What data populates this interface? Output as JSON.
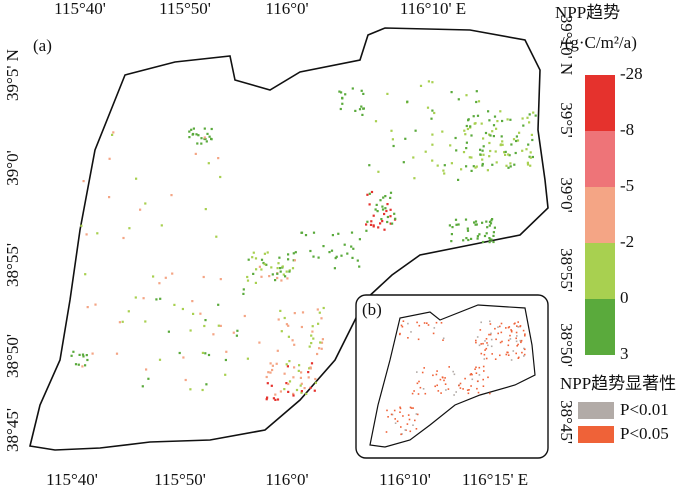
{
  "map": {
    "panel_a": "(a)",
    "panel_b": "(b)",
    "top_ticks": [
      "115°40'",
      "115°50'",
      "116°0'",
      "116°10' E"
    ],
    "bottom_ticks": [
      "115°40'",
      "115°50'",
      "116°0'",
      "116°10'",
      "116°15' E"
    ],
    "left_ticks": [
      "39°5' N",
      "39°0'",
      "38°55'",
      "38°50'",
      "38°45'"
    ],
    "right_ticks": [
      "39°10' N",
      "39°5'",
      "39°0'",
      "38°55'",
      "38°50'",
      "38°45'"
    ]
  },
  "legend": {
    "title": "NPP趋势",
    "unit": "/(g·C/m²/a)",
    "labels": [
      "-28",
      "-8",
      "-5",
      "-2",
      "0",
      "3"
    ],
    "colors": [
      "#e5322d",
      "#ee7478",
      "#f4a585",
      "#a8d050",
      "#5aaa3c"
    ]
  },
  "significance": {
    "title": "NPP趋势显著性",
    "items": [
      {
        "label": "P<0.01",
        "color": "#b2aba7"
      },
      {
        "label": "P<0.05",
        "color": "#ef6238"
      }
    ]
  }
}
